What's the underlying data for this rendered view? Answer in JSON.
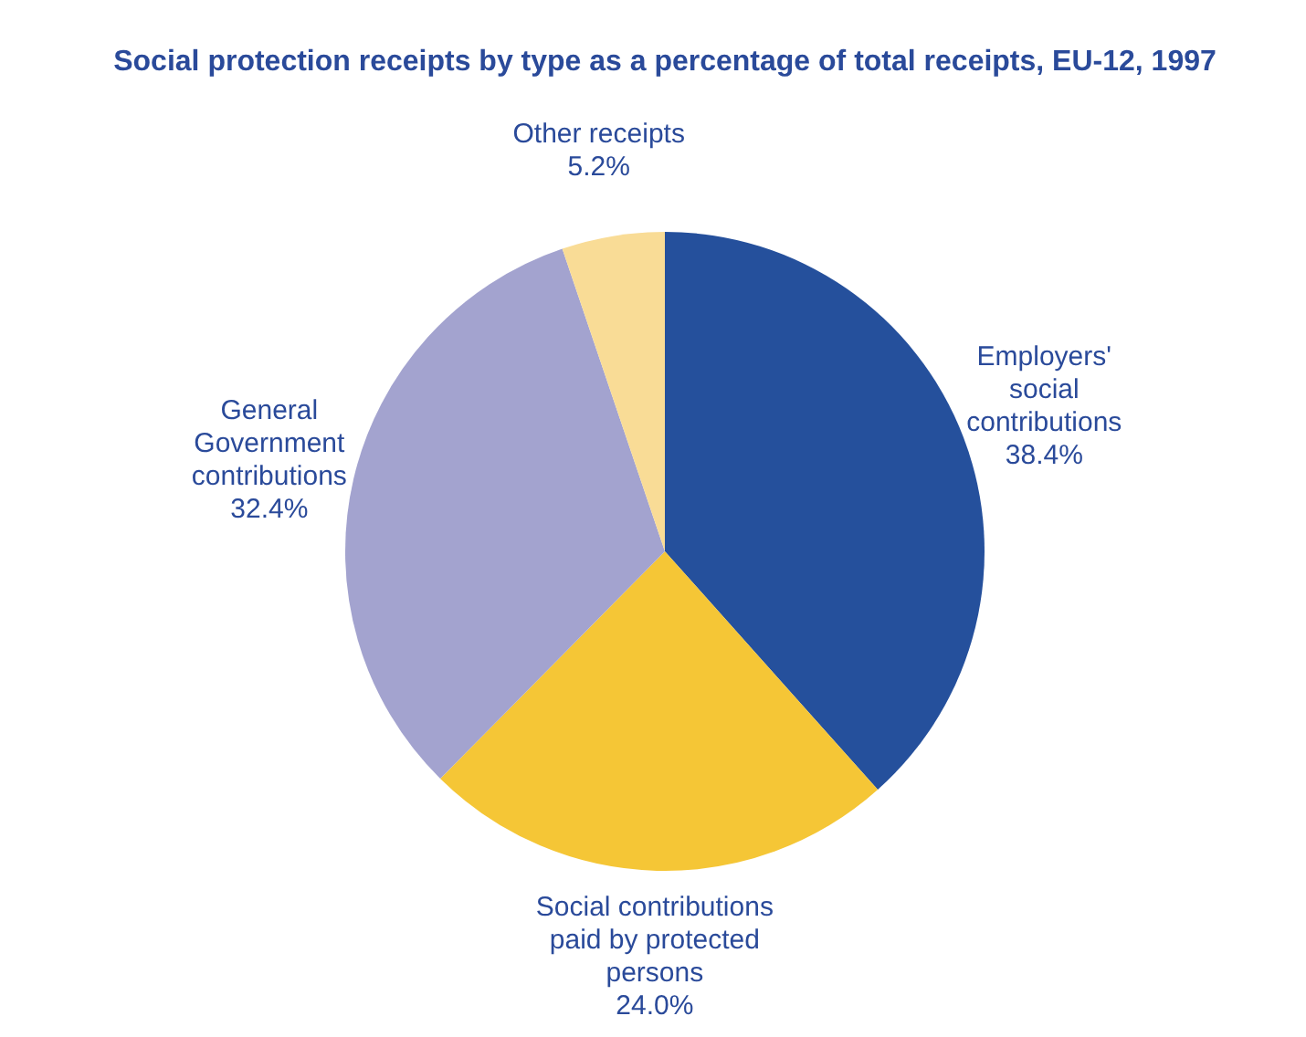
{
  "chart_data": {
    "type": "pie",
    "title": "Social protection receipts by type as a percentage of total receipts, EU-12, 1997",
    "categories": [
      "Employers' social contributions",
      "Social contributions paid by protected persons",
      "General Government contributions",
      "Other receipts"
    ],
    "values": [
      38.4,
      24.0,
      32.4,
      5.2
    ],
    "colors": [
      "#25509c",
      "#f5c636",
      "#a3a3cf",
      "#f9dc96"
    ],
    "value_labels": [
      "38.4%",
      "24.0%",
      "32.4%",
      "5.2%"
    ]
  }
}
